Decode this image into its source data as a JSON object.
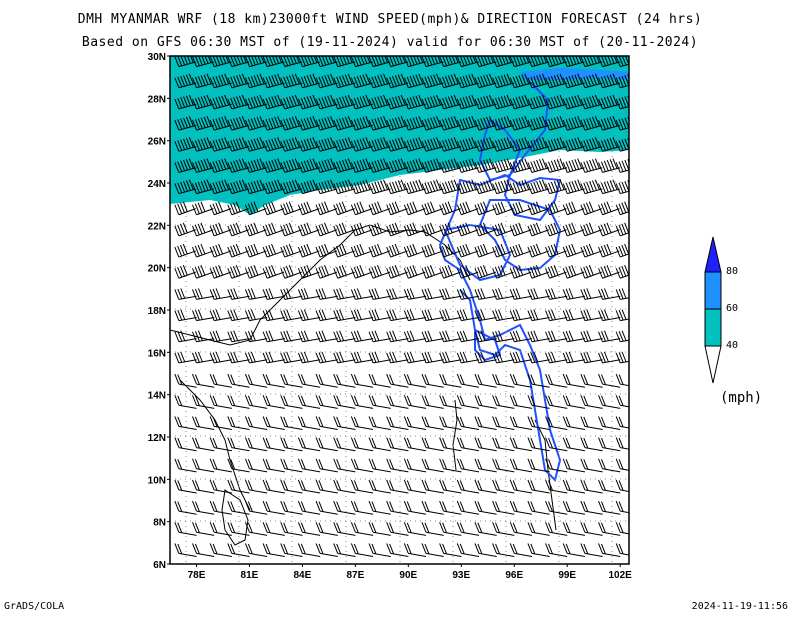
{
  "title_line1": "DMH MYANMAR WRF (18 km)23000ft WIND SPEED(mph)& DIRECTION FORECAST (24 hrs)",
  "title_line2": "Based on GFS 06:30 MST of (19-11-2024) valid for 06:30 MST of (20-11-2024)",
  "footer_left": "GrADS/COLA",
  "footer_right": "2024-11-19-11:56",
  "map": {
    "lat_labels": [
      "30N",
      "28N",
      "26N",
      "24N",
      "22N",
      "20N",
      "18N",
      "16N",
      "14N",
      "12N",
      "10N",
      "8N",
      "6N"
    ],
    "lon_labels": [
      "78E",
      "81E",
      "84E",
      "87E",
      "90E",
      "93E",
      "96E",
      "99E",
      "102E"
    ],
    "lat_range": [
      6,
      30
    ],
    "lon_range": [
      76.5,
      102.5
    ],
    "shade_color": "#00c0c0",
    "border_color": "#2050ff",
    "shaded_band": "wind 40-60 mph over 23N-30N"
  },
  "colorbar": {
    "unit": "(mph)",
    "levels": [
      "40",
      "60",
      "80"
    ],
    "colors": [
      "#00c0c0",
      "#1e90ff",
      "#2020ff"
    ]
  }
}
